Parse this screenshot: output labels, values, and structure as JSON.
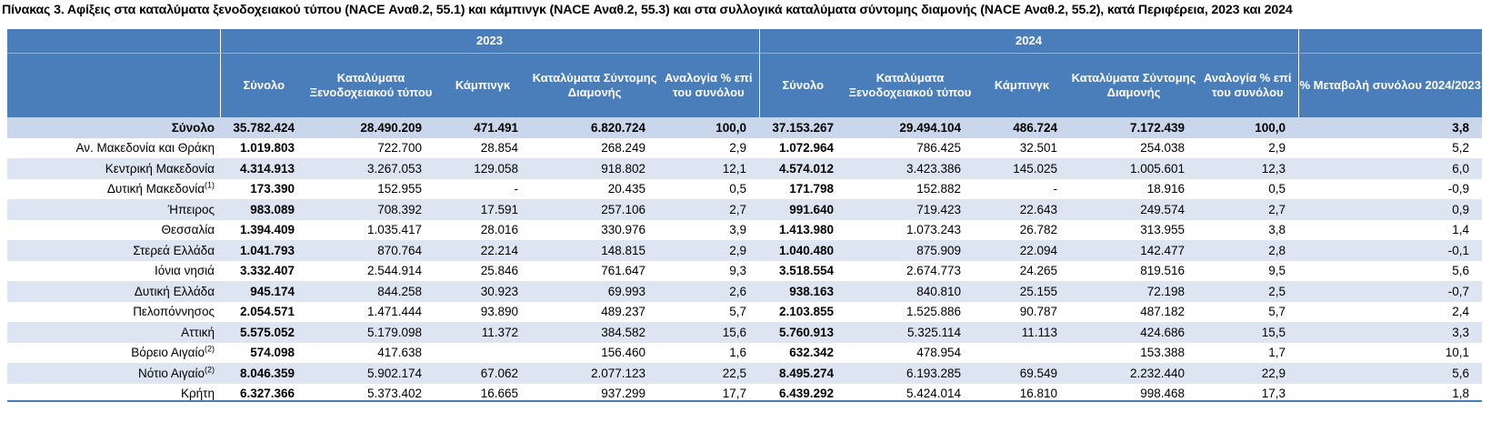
{
  "title": "Πίνακας 3. Αφίξεις στα καταλύματα ξενοδοχειακού τύπου (NACE Αναθ.2, 55.1) και κάμπινγκ (NACE Αναθ.2, 55.3) και στα συλλογικά καταλύματα σύντομης διαμονής (NACE Αναθ.2, 55.2), κατά Περιφέρεια, 2023 και 2024",
  "years": [
    "2023",
    "2024"
  ],
  "columns": [
    "Σύνολο",
    "Καταλύματα Ξενοδοχειακού τύπου",
    "Κάμπινγκ",
    "Καταλύματα Σύντομης Διαμονής",
    "Αναλογία % επί του συνόλου"
  ],
  "change_column": "% Μεταβολή συνόλου 2024/2023",
  "note_marker": "(2)",
  "rows": [
    {
      "region": "Σύνολο",
      "sup": "",
      "v": [
        "35.782.424",
        "28.490.209",
        "471.491",
        "6.820.724",
        "100,0",
        "37.153.267",
        "29.494.104",
        "486.724",
        "7.172.439",
        "100,0",
        "3,8"
      ]
    },
    {
      "region": "Αν. Μακεδονία και Θράκη",
      "sup": "",
      "v": [
        "1.019.803",
        "722.700",
        "28.854",
        "268.249",
        "2,9",
        "1.072.964",
        "786.425",
        "32.501",
        "254.038",
        "2,9",
        "5,2"
      ]
    },
    {
      "region": "Κεντρική Μακεδονία",
      "sup": "",
      "v": [
        "4.314.913",
        "3.267.053",
        "129.058",
        "918.802",
        "12,1",
        "4.574.012",
        "3.423.386",
        "145.025",
        "1.005.601",
        "12,3",
        "6,0"
      ]
    },
    {
      "region": "Δυτική Μακεδονία",
      "sup": "(1)",
      "v": [
        "173.390",
        "152.955",
        "-",
        "20.435",
        "0,5",
        "171.798",
        "152.882",
        "-",
        "18.916",
        "0,5",
        "-0,9"
      ]
    },
    {
      "region": "Ήπειρος",
      "sup": "",
      "v": [
        "983.089",
        "708.392",
        "17.591",
        "257.106",
        "2,7",
        "991.640",
        "719.423",
        "22.643",
        "249.574",
        "2,7",
        "0,9"
      ]
    },
    {
      "region": "Θεσσαλία",
      "sup": "",
      "v": [
        "1.394.409",
        "1.035.417",
        "28.016",
        "330.976",
        "3,9",
        "1.413.980",
        "1.073.243",
        "26.782",
        "313.955",
        "3,8",
        "1,4"
      ]
    },
    {
      "region": "Στερεά Ελλάδα",
      "sup": "",
      "v": [
        "1.041.793",
        "870.764",
        "22.214",
        "148.815",
        "2,9",
        "1.040.480",
        "875.909",
        "22.094",
        "142.477",
        "2,8",
        "-0,1"
      ]
    },
    {
      "region": "Ιόνια νησιά",
      "sup": "",
      "v": [
        "3.332.407",
        "2.544.914",
        "25.846",
        "761.647",
        "9,3",
        "3.518.554",
        "2.674.773",
        "24.265",
        "819.516",
        "9,5",
        "5,6"
      ]
    },
    {
      "region": "Δυτική Ελλάδα",
      "sup": "",
      "v": [
        "945.174",
        "844.258",
        "30.923",
        "69.993",
        "2,6",
        "938.163",
        "840.810",
        "25.155",
        "72.198",
        "2,5",
        "-0,7"
      ]
    },
    {
      "region": "Πελοπόννησος",
      "sup": "",
      "v": [
        "2.054.571",
        "1.471.444",
        "93.890",
        "489.237",
        "5,7",
        "2.103.855",
        "1.525.886",
        "90.787",
        "487.182",
        "5,7",
        "2,4"
      ]
    },
    {
      "region": "Αττική",
      "sup": "",
      "v": [
        "5.575.052",
        "5.179.098",
        "11.372",
        "384.582",
        "15,6",
        "5.760.913",
        "5.325.114",
        "11.113",
        "424.686",
        "15,5",
        "3,3"
      ]
    },
    {
      "region": "Βόρειο Αιγαίο",
      "sup": "(2)",
      "v": [
        "574.098",
        "417.638",
        "",
        "156.460",
        "1,6",
        "632.342",
        "478.954",
        "",
        "153.388",
        "1,7",
        "10,1"
      ]
    },
    {
      "region": "Νότιο Αιγαίο",
      "sup": "(2)",
      "v": [
        "8.046.359",
        "5.902.174",
        "67.062",
        "2.077.123",
        "22,5",
        "8.495.274",
        "6.193.285",
        "69.549",
        "2.232.440",
        "22,9",
        "5,6"
      ]
    },
    {
      "region": "Κρήτη",
      "sup": "",
      "v": [
        "6.327.366",
        "5.373.402",
        "16.665",
        "937.299",
        "17,7",
        "6.439.292",
        "5.424.014",
        "16.810",
        "998.468",
        "17,3",
        "1,8"
      ]
    }
  ]
}
